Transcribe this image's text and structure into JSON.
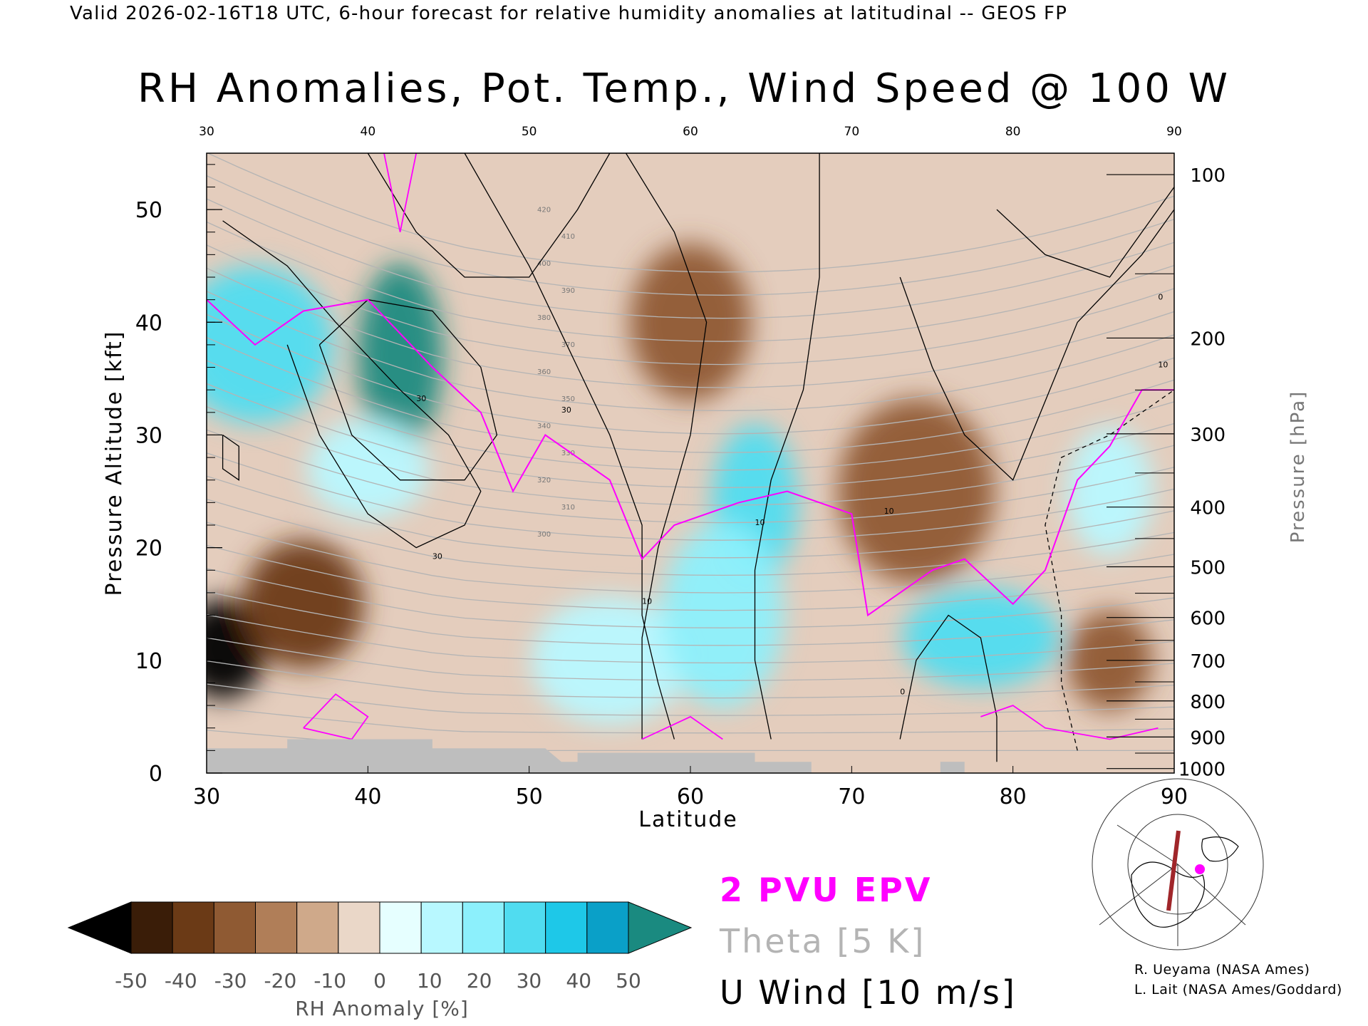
{
  "header": {
    "valid_line": "Valid 2026-02-16T18 UTC, 6-hour forecast for relative humidity anomalies at latitudinal -- GEOS FP",
    "title": "RH Anomalies, Pot. Temp., Wind Speed @ 100 W"
  },
  "colors": {
    "epv": "#ff00ff",
    "theta": "#b4b4b4",
    "wind": "#000000",
    "terrain": "#bebebe",
    "colorbar": [
      "#000000",
      "#3a1d08",
      "#6b3a16",
      "#8f5a33",
      "#b07e58",
      "#cfa98a",
      "#ead7c8",
      "#e6ffff",
      "#b8f8ff",
      "#8cf0fc",
      "#50dcf0",
      "#1ec8e8",
      "#0aa0c8",
      "#1a8a80"
    ]
  },
  "legend": {
    "epv": "2 PVU EPV",
    "theta": "Theta [5 K]",
    "uwind": "U Wind [10 m/s]"
  },
  "credits": {
    "line1": "R. Ueyama (NASA Ames)",
    "line2": "L. Lait (NASA Ames/Goddard)"
  },
  "map_inset": {
    "icon": "polar-map-icon",
    "section_color": "#a0262a",
    "marker_color": "#ff00ff"
  },
  "chart_data": {
    "type": "heatmap",
    "title": "RH Anomalies, Pot. Temp., Wind Speed @ 100 W",
    "xlabel": "Latitude",
    "ylabel": "Pressure Altitude [kft]",
    "y2label": "Pressure [hPa]",
    "xlim": [
      30,
      90
    ],
    "ylim": [
      0,
      55
    ],
    "x_ticks": [
      "30",
      "40",
      "50",
      "60",
      "70",
      "80",
      "90"
    ],
    "y_ticks": [
      "0",
      "10",
      "20",
      "30",
      "40",
      "50"
    ],
    "pressure_ticks": [
      "100",
      "200",
      "300",
      "400",
      "500",
      "600",
      "700",
      "800",
      "900",
      "1000"
    ],
    "pressure_tick_kft": [
      53.1,
      38.6,
      30.1,
      23.6,
      18.3,
      13.8,
      10.0,
      6.4,
      3.2,
      0.4
    ],
    "colorbar": {
      "label": "RH Anomaly [%]",
      "ticks": [
        "-50",
        "-40",
        "-30",
        "-20",
        "-10",
        "0",
        "10",
        "20",
        "30",
        "40",
        "50"
      ],
      "range": [
        -50,
        50
      ]
    },
    "rh_anomaly_regions": [
      {
        "lat": 31,
        "kft": 11,
        "value": -55
      },
      {
        "lat": 36,
        "kft": 15,
        "value": -40
      },
      {
        "lat": 33,
        "kft": 38,
        "value": 45
      },
      {
        "lat": 42,
        "kft": 37,
        "value": 50
      },
      {
        "lat": 40,
        "kft": 27,
        "value": 25
      },
      {
        "lat": 55,
        "kft": 10,
        "value": 25
      },
      {
        "lat": 64,
        "kft": 24,
        "value": 45
      },
      {
        "lat": 62,
        "kft": 14,
        "value": 35
      },
      {
        "lat": 78,
        "kft": 12,
        "value": 40
      },
      {
        "lat": 86,
        "kft": 25,
        "value": 20
      },
      {
        "lat": 60,
        "kft": 40,
        "value": -22
      },
      {
        "lat": 74,
        "kft": 25,
        "value": -30
      },
      {
        "lat": 86,
        "kft": 10,
        "value": -28
      }
    ],
    "u_wind_contours": [
      {
        "label": "30",
        "lat": 43,
        "kft": 33
      },
      {
        "label": "30",
        "lat": 44,
        "kft": 19
      },
      {
        "label": "30",
        "lat": 52,
        "kft": 32
      },
      {
        "label": "10",
        "lat": 57,
        "kft": 15
      },
      {
        "label": "10",
        "lat": 64,
        "kft": 22
      },
      {
        "label": "10",
        "lat": 72,
        "kft": 23
      },
      {
        "label": "10",
        "lat": 89,
        "kft": 36
      },
      {
        "label": "0",
        "lat": 73,
        "kft": 7
      },
      {
        "label": "0",
        "lat": 89,
        "kft": 42
      }
    ],
    "theta_labels": [
      "300",
      "310",
      "320",
      "330",
      "340",
      "350",
      "360",
      "370",
      "380",
      "390",
      "400",
      "410",
      "420"
    ],
    "epv_2pvu_lat_kft": [
      [
        30,
        42
      ],
      [
        33,
        38
      ],
      [
        36,
        41
      ],
      [
        40,
        42
      ],
      [
        44,
        36
      ],
      [
        47,
        32
      ],
      [
        49,
        25
      ],
      [
        51,
        30
      ],
      [
        55,
        26
      ],
      [
        57,
        19
      ],
      [
        59,
        22
      ],
      [
        63,
        24
      ],
      [
        66,
        25
      ],
      [
        70,
        23
      ],
      [
        71,
        14
      ],
      [
        73,
        16
      ],
      [
        75,
        18
      ],
      [
        77,
        19
      ],
      [
        80,
        15
      ],
      [
        82,
        18
      ],
      [
        84,
        26
      ],
      [
        86,
        29
      ],
      [
        88,
        34
      ],
      [
        90,
        34
      ]
    ]
  }
}
